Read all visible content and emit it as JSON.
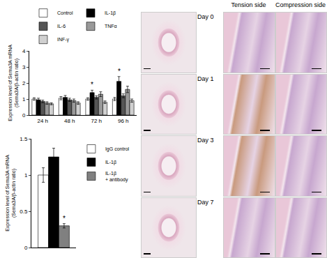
{
  "chart_data": [
    {
      "type": "bar",
      "categories": [
        "24 h",
        "48 h",
        "72 h",
        "96 h"
      ],
      "y_label": "Expression level of Sema3A mRNA\n(Sema3A/β-actin ratio)",
      "ylim": [
        0,
        4
      ],
      "yticks": [
        0,
        1,
        2,
        3,
        4
      ],
      "legend": "top",
      "series": [
        {
          "name": "Control",
          "color": "#ffffff",
          "values": [
            1.0,
            1.05,
            1.0,
            1.0
          ],
          "errors": [
            0.08,
            0.1,
            0.08,
            0.1
          ]
        },
        {
          "name": "IL-1β",
          "color": "#000000",
          "values": [
            0.95,
            1.1,
            1.4,
            2.1
          ],
          "errors": [
            0.1,
            0.12,
            0.15,
            0.3
          ]
        },
        {
          "name": "IL-6",
          "color": "#555555",
          "values": [
            0.85,
            0.95,
            1.1,
            1.2
          ],
          "errors": [
            0.08,
            0.1,
            0.1,
            0.12
          ]
        },
        {
          "name": "TNFα",
          "color": "#999999",
          "values": [
            0.75,
            0.9,
            1.3,
            1.6
          ],
          "errors": [
            0.08,
            0.1,
            0.15,
            0.2
          ]
        },
        {
          "name": "INF-γ",
          "color": "#d0d0d0",
          "values": [
            0.7,
            0.75,
            0.8,
            0.9
          ],
          "errors": [
            0.06,
            0.08,
            0.08,
            0.1
          ]
        }
      ],
      "annotations": [
        {
          "text": "*",
          "category": "72 h",
          "series": "IL-1β"
        },
        {
          "text": "*",
          "category": "96 h",
          "series": "IL-1β"
        }
      ]
    },
    {
      "type": "bar",
      "categories": [
        null
      ],
      "y_label": "Expression level of Sema3A mRNA\n(Sema3A/β-actin ratio)",
      "ylim": [
        0,
        1.5
      ],
      "yticks": [
        0,
        0.5,
        1,
        1.5
      ],
      "legend": "right",
      "tick_labels": "y",
      "series": [
        {
          "name": "IgG control",
          "color": "#ffffff",
          "values": [
            1.0
          ],
          "errors": [
            0.1
          ]
        },
        {
          "name": "IL-1β",
          "color": "#000000",
          "values": [
            1.25
          ],
          "errors": [
            0.12
          ]
        },
        {
          "name": "IL-1β\n+ antibody",
          "color": "#808080",
          "values": [
            0.3
          ],
          "errors": [
            0.03
          ]
        }
      ],
      "annotations": [
        {
          "text": "*",
          "category": null,
          "series": "IL-1β\n+ antibody"
        }
      ]
    }
  ],
  "micrographs": {
    "columns": [
      "Tension side",
      "Compression side"
    ],
    "rows": [
      "Day 0",
      "Day 1",
      "Day 3",
      "Day 7"
    ]
  }
}
